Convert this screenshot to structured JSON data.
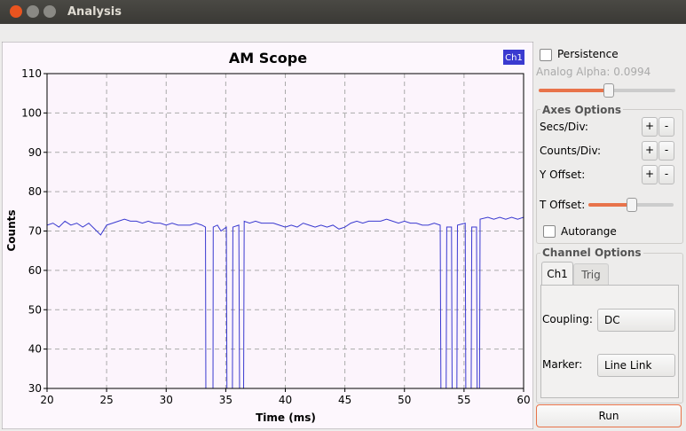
{
  "window": {
    "title": "Analysis"
  },
  "chart_data": {
    "type": "line",
    "title": "AM Scope",
    "x_label": "Time (ms)",
    "y_label": "Counts",
    "x": [
      20,
      20.5,
      21,
      21.5,
      22,
      22.5,
      23,
      23.5,
      24,
      24.5,
      25,
      25.5,
      26,
      26.5,
      27,
      27.5,
      28,
      28.5,
      29,
      29.5,
      30,
      30.5,
      31,
      31.5,
      32,
      32.5,
      33,
      33.3,
      33.33,
      33.93,
      33.95,
      34.3,
      34.6,
      35.05,
      35.1,
      35.56,
      35.6,
      36.1,
      36.16,
      36.5,
      36.55,
      37,
      37.5,
      38,
      38.5,
      39,
      39.5,
      40,
      40.5,
      41,
      41.5,
      42,
      42.5,
      43,
      43.5,
      44,
      44.5,
      45,
      45.5,
      46,
      46.5,
      47,
      47.5,
      48,
      48.5,
      49,
      49.5,
      50,
      50.5,
      51,
      51.5,
      52,
      52.5,
      53,
      53.06,
      53.5,
      53.55,
      53.95,
      54,
      54.4,
      54.45,
      55.1,
      55.15,
      55.6,
      55.65,
      56.05,
      56.1,
      56.3,
      56.35,
      57,
      57.5,
      58,
      58.5,
      59,
      59.5,
      60
    ],
    "series": [
      {
        "name": "Ch1",
        "color": "#3a3ad0",
        "values": [
          71.5,
          72,
          71,
          72.5,
          71.5,
          72,
          71,
          72,
          70.5,
          69,
          71.5,
          72,
          72.5,
          73,
          72.5,
          72.5,
          72,
          72.5,
          72,
          72,
          71.5,
          72,
          71.5,
          71.5,
          71.5,
          72,
          71.5,
          71,
          30,
          30,
          71,
          71.5,
          70,
          71,
          30,
          30,
          71,
          71.5,
          30,
          30,
          72.5,
          72,
          72.5,
          72,
          72,
          72,
          71.5,
          71,
          71.5,
          71,
          72,
          71.5,
          71,
          71.5,
          71,
          71.5,
          70.5,
          71,
          72,
          72.5,
          72,
          72.5,
          72.5,
          72.5,
          73,
          72.5,
          72,
          72.5,
          72,
          72,
          71.5,
          71.5,
          72,
          71.5,
          30,
          30,
          71,
          71,
          30,
          30,
          71.5,
          72,
          30,
          30,
          71,
          71,
          30,
          30,
          73,
          73.5,
          73,
          73.5,
          73,
          73.5,
          73,
          73.5
        ]
      }
    ],
    "xlim": [
      20,
      60
    ],
    "xticks": [
      20,
      25,
      30,
      35,
      40,
      45,
      50,
      55,
      60
    ],
    "ylim": [
      30,
      110
    ],
    "yticks": [
      30,
      40,
      50,
      60,
      70,
      80,
      90,
      100,
      110
    ],
    "grid": true,
    "legend": "upper right"
  },
  "panel": {
    "persistence": "Persistence",
    "analog_alpha": "Analog Alpha: 0.0994",
    "axes_options": {
      "title": "Axes Options",
      "rows": [
        {
          "label": "Secs/Div:",
          "plus": "+",
          "minus": "-"
        },
        {
          "label": "Counts/Div:",
          "plus": "+",
          "minus": "-"
        },
        {
          "label": "Y Offset:",
          "plus": "+",
          "minus": "-"
        }
      ],
      "t_offset": "T Offset:",
      "autorange": "Autorange"
    },
    "channel_options": {
      "title": "Channel Options",
      "tabs": [
        "Ch1",
        "Trig"
      ],
      "coupling_label": "Coupling:",
      "coupling": "DC",
      "marker_label": "Marker:",
      "marker": "Line Link"
    },
    "run": "Run"
  }
}
